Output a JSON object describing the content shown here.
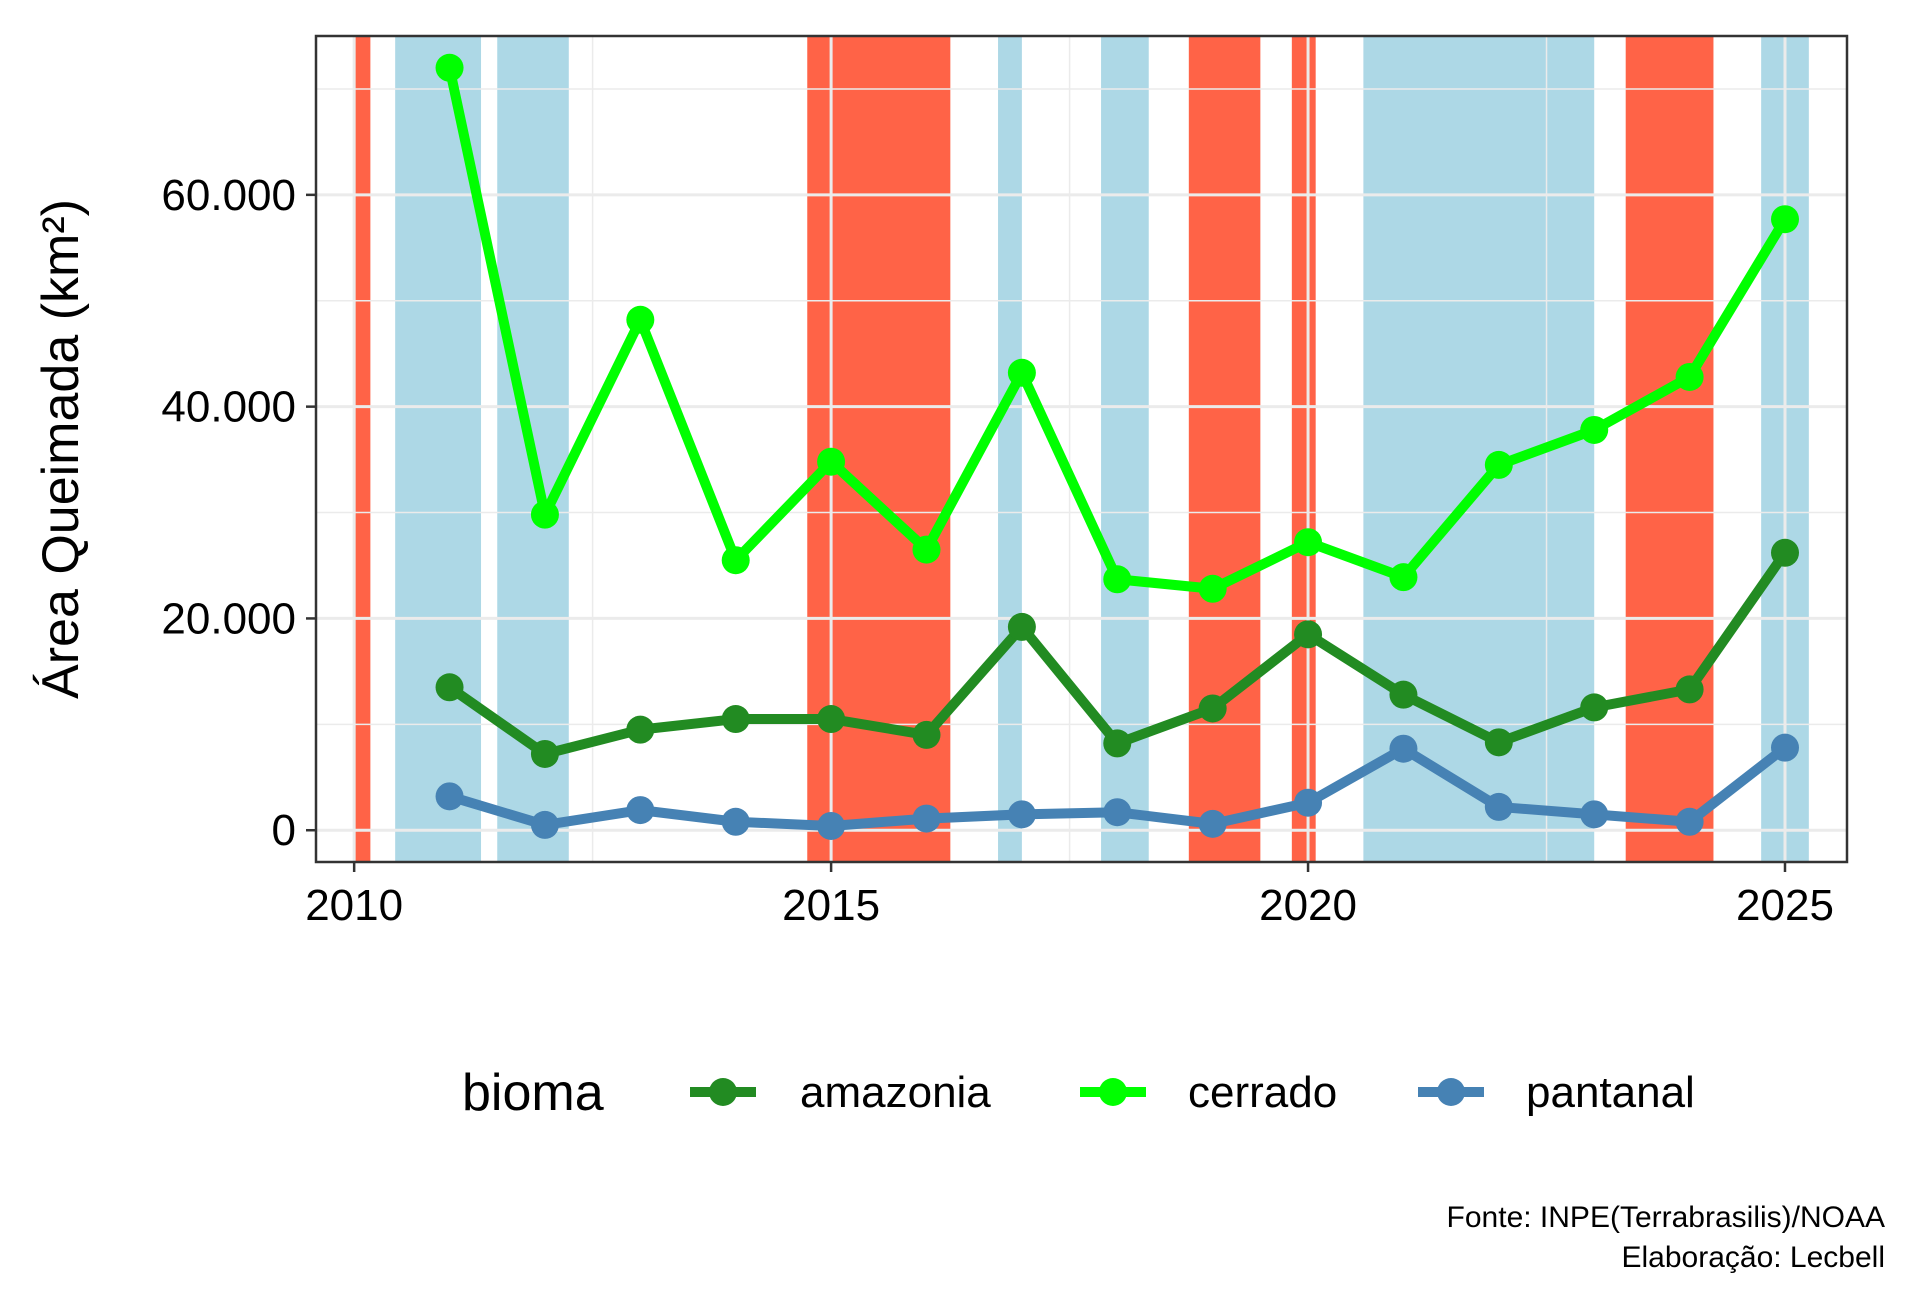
{
  "chart_data": {
    "type": "line",
    "xlabel": "",
    "ylabel": "Área Queimada (km²)",
    "xlim": [
      2009.6,
      2025.65
    ],
    "ylim": [
      -3000,
      75000
    ],
    "x_ticks": [
      2010,
      2015,
      2020,
      2025
    ],
    "y_ticks": [
      0,
      20000,
      40000,
      60000
    ],
    "y_tick_labels": [
      "0",
      "20.000",
      "40.000",
      "60.000"
    ],
    "grid": true,
    "legend": {
      "title": "bioma",
      "position": "bottom"
    },
    "x": [
      2011,
      2012,
      2013,
      2014,
      2015,
      2016,
      2017,
      2018,
      2019,
      2020,
      2021,
      2022,
      2023,
      2024,
      2025
    ],
    "series": [
      {
        "name": "amazonia",
        "color": "#228B22",
        "values": [
          13500,
          7200,
          9500,
          10500,
          10500,
          9000,
          19200,
          8200,
          11500,
          18500,
          12800,
          8300,
          11600,
          13300,
          26200
        ]
      },
      {
        "name": "cerrado",
        "color": "#00FF00",
        "values": [
          72000,
          29800,
          48200,
          25500,
          34800,
          26500,
          43200,
          23700,
          22800,
          27200,
          23900,
          34500,
          37800,
          42800,
          57700
        ]
      },
      {
        "name": "pantanal",
        "color": "#4682B4",
        "values": [
          3200,
          500,
          1900,
          800,
          400,
          1100,
          1500,
          1700,
          600,
          2600,
          7700,
          2200,
          1500,
          800,
          7800
        ]
      }
    ],
    "background_bands": [
      {
        "start": 2010.0,
        "end": 2010.17,
        "color": "#FF6347"
      },
      {
        "start": 2010.43,
        "end": 2011.33,
        "color": "#ADD8E6"
      },
      {
        "start": 2011.5,
        "end": 2012.25,
        "color": "#ADD8E6"
      },
      {
        "start": 2014.75,
        "end": 2016.25,
        "color": "#FF6347"
      },
      {
        "start": 2016.75,
        "end": 2017.0,
        "color": "#ADD8E6"
      },
      {
        "start": 2017.83,
        "end": 2018.33,
        "color": "#ADD8E6"
      },
      {
        "start": 2018.75,
        "end": 2019.5,
        "color": "#FF6347"
      },
      {
        "start": 2019.83,
        "end": 2020.08,
        "color": "#FF6347"
      },
      {
        "start": 2020.58,
        "end": 2023.0,
        "color": "#ADD8E6"
      },
      {
        "start": 2023.33,
        "end": 2024.25,
        "color": "#FF6347"
      },
      {
        "start": 2024.75,
        "end": 2025.25,
        "color": "#ADD8E6"
      }
    ],
    "caption": [
      "Fonte: INPE(Terrabrasilis)/NOAA",
      "Elaboração: Lecbell"
    ]
  }
}
